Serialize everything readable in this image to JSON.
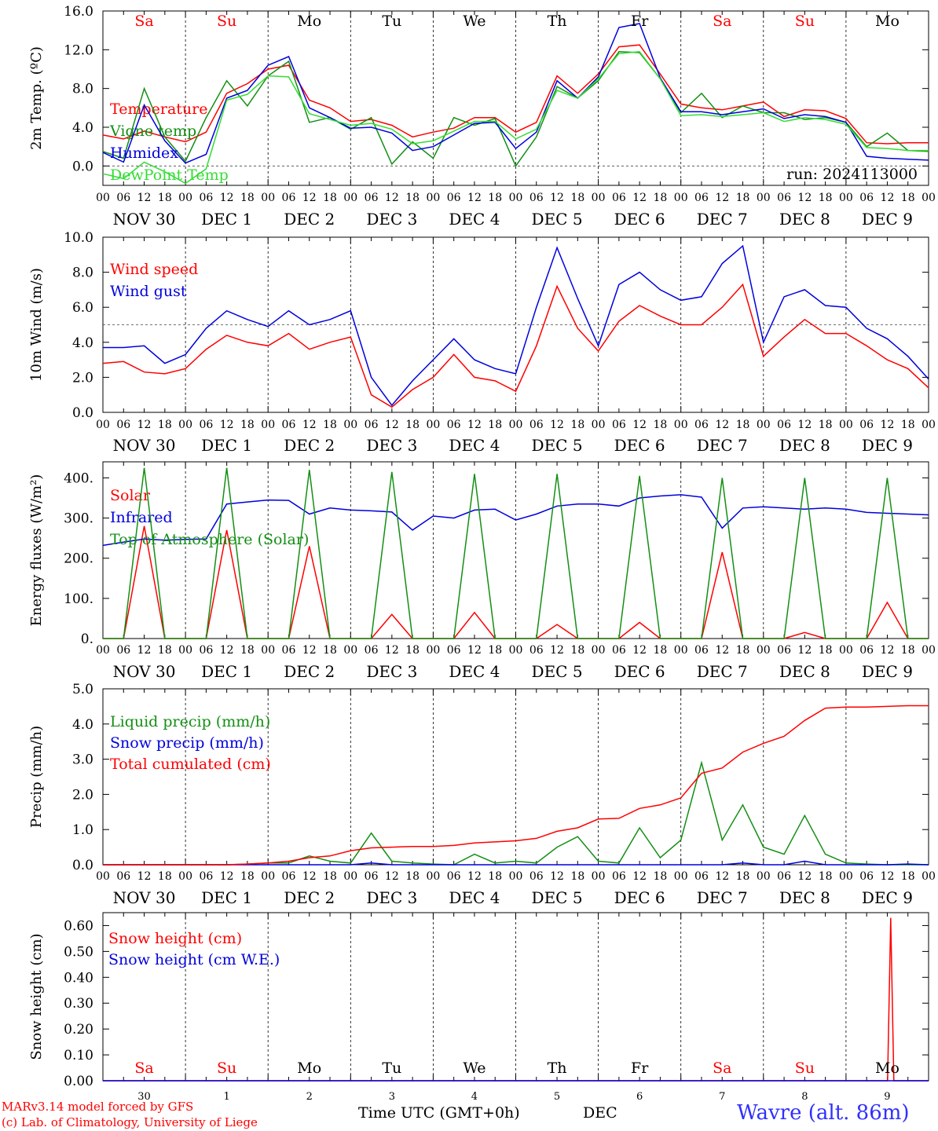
{
  "layout_days": 10,
  "day_names": [
    "Sa",
    "Su",
    "Mo",
    "Tu",
    "We",
    "Th",
    "Fr",
    "Sa",
    "Su",
    "Mo"
  ],
  "day_name_colors": [
    "#ff0000",
    "#ff0000",
    "#000000",
    "#000000",
    "#000000",
    "#000000",
    "#000000",
    "#ff0000",
    "#ff0000",
    "#000000"
  ],
  "hour_labels": [
    "00",
    "06",
    "12",
    "18"
  ],
  "date_labels": [
    "NOV 30",
    "DEC  1",
    "DEC  2",
    "DEC  3",
    "DEC  4",
    "DEC  5",
    "DEC  6",
    "DEC  7",
    "DEC  8",
    "DEC  9"
  ],
  "bottom_day_numbers": [
    "30",
    "1",
    "2",
    "3",
    "4",
    "5",
    "6",
    "7",
    "8",
    "9"
  ],
  "footer": {
    "credit_line1": "MARv3.14 model forced by GFS",
    "credit_line2": "(c) Lab. of Climatology, University of Liege",
    "time_axis": "Time UTC (GMT+0h)",
    "month": "DEC",
    "station": "Wavre (alt. 86m)"
  },
  "chart_data": [
    {
      "type": "line",
      "ylabel": "2m Temp. (ºC)",
      "ylim": [
        -2,
        16
      ],
      "yticks": [
        "0.0",
        "4.0",
        "8.0",
        "12.0",
        "16.0"
      ],
      "ytick_values": [
        0,
        4,
        8,
        12,
        16
      ],
      "reference_line": 0,
      "annotation": "run: 2024113000",
      "x": [
        0,
        6,
        12,
        18,
        24,
        30,
        36,
        42,
        48,
        54,
        60,
        66,
        72,
        78,
        84,
        90,
        96,
        102,
        108,
        114,
        120,
        126,
        132,
        138,
        144,
        150,
        156,
        162,
        168,
        174,
        180,
        186,
        192,
        198,
        204,
        210,
        216,
        222,
        228,
        234,
        240
      ],
      "series": [
        {
          "name": "Temperature",
          "color": "#ff0000",
          "values": [
            3.2,
            2.8,
            3.6,
            3.0,
            2.5,
            3.5,
            7.5,
            8.5,
            10.0,
            10.4,
            6.8,
            6.0,
            4.6,
            4.8,
            4.2,
            3.0,
            3.5,
            3.9,
            5.0,
            5.0,
            3.5,
            4.5,
            9.3,
            7.5,
            9.5,
            12.3,
            12.5,
            9.5,
            6.4,
            6.0,
            5.8,
            6.2,
            6.6,
            5.1,
            5.8,
            5.7,
            4.9,
            2.4,
            2.3,
            2.4,
            2.4
          ]
        },
        {
          "name": "Vigne temp",
          "color": "#138f13",
          "values": [
            1.5,
            0.8,
            8.0,
            3.0,
            0.5,
            5.0,
            8.8,
            6.2,
            9.3,
            10.8,
            4.5,
            5.0,
            3.8,
            5.0,
            0.2,
            2.5,
            0.8,
            5.0,
            4.2,
            4.9,
            0.0,
            3.0,
            8.2,
            7.0,
            8.8,
            11.8,
            11.7,
            9.0,
            5.5,
            7.5,
            5.0,
            6.2,
            5.5,
            5.5,
            4.8,
            5.0,
            4.5,
            2.0,
            3.4,
            1.6,
            1.5
          ]
        },
        {
          "name": "Humidex",
          "color": "#0000dd",
          "values": [
            1.4,
            0.4,
            6.3,
            2.6,
            0.3,
            1.2,
            7.0,
            7.8,
            10.4,
            11.3,
            6.0,
            5.0,
            3.9,
            4.0,
            3.4,
            1.6,
            2.0,
            3.2,
            4.4,
            4.5,
            1.8,
            3.5,
            8.8,
            7.0,
            9.2,
            14.3,
            14.7,
            9.1,
            5.6,
            5.6,
            5.3,
            5.6,
            5.9,
            4.9,
            5.3,
            5.1,
            4.5,
            1.0,
            0.8,
            0.7,
            0.6
          ]
        },
        {
          "name": "DewPoint Temp",
          "color": "#33dd33",
          "values": [
            -0.8,
            -1.3,
            0.4,
            -0.6,
            -1.8,
            -0.3,
            6.8,
            7.4,
            9.3,
            9.2,
            5.4,
            4.8,
            4.2,
            4.4,
            3.8,
            2.3,
            2.6,
            3.6,
            4.6,
            4.6,
            2.8,
            3.8,
            7.8,
            7.0,
            9.0,
            11.6,
            11.8,
            9.0,
            5.2,
            5.3,
            5.1,
            5.3,
            5.5,
            4.6,
            5.0,
            4.8,
            4.3,
            1.9,
            1.8,
            1.6,
            1.6
          ]
        }
      ]
    },
    {
      "type": "line",
      "ylabel": "10m Wind (m/s)",
      "ylim": [
        0,
        10
      ],
      "yticks": [
        "0.0",
        "2.0",
        "4.0",
        "6.0",
        "8.0",
        "10.0"
      ],
      "ytick_values": [
        0,
        2,
        4,
        6,
        8,
        10
      ],
      "reference_line": 5,
      "x": [
        0,
        6,
        12,
        18,
        24,
        30,
        36,
        42,
        48,
        54,
        60,
        66,
        72,
        78,
        84,
        90,
        96,
        102,
        108,
        114,
        120,
        126,
        132,
        138,
        144,
        150,
        156,
        162,
        168,
        174,
        180,
        186,
        192,
        198,
        204,
        210,
        216,
        222,
        228,
        234,
        240
      ],
      "series": [
        {
          "name": "Wind speed",
          "color": "#ff0000",
          "values": [
            2.8,
            2.9,
            2.3,
            2.2,
            2.5,
            3.6,
            4.4,
            4.0,
            3.8,
            4.5,
            3.6,
            4.0,
            4.3,
            1.0,
            0.3,
            1.3,
            2.0,
            3.3,
            2.0,
            1.8,
            1.2,
            3.8,
            7.2,
            4.8,
            3.5,
            5.2,
            6.1,
            5.5,
            5.0,
            5.0,
            6.0,
            7.3,
            3.2,
            4.3,
            5.3,
            4.5,
            4.5,
            3.8,
            3.0,
            2.5,
            1.4
          ]
        },
        {
          "name": "Wind gust",
          "color": "#0000dd",
          "values": [
            3.7,
            3.7,
            3.8,
            2.8,
            3.3,
            4.8,
            5.8,
            5.3,
            4.9,
            5.8,
            5.0,
            5.3,
            5.8,
            2.0,
            0.4,
            1.8,
            3.0,
            4.2,
            3.0,
            2.5,
            2.2,
            6.0,
            9.4,
            6.5,
            3.8,
            7.3,
            8.0,
            7.0,
            6.4,
            6.6,
            8.5,
            9.5,
            4.0,
            6.6,
            7.0,
            6.1,
            6.0,
            4.8,
            4.2,
            3.2,
            1.9
          ]
        }
      ]
    },
    {
      "type": "line",
      "ylabel": "Energy fluxes (W/m²)",
      "ylim": [
        0,
        440
      ],
      "yticks": [
        "0.",
        "100.",
        "200.",
        "300.",
        "400."
      ],
      "ytick_values": [
        0,
        100,
        200,
        300,
        400
      ],
      "x": [
        0,
        6,
        12,
        18,
        24,
        30,
        36,
        42,
        48,
        54,
        60,
        66,
        72,
        78,
        84,
        90,
        96,
        102,
        108,
        114,
        120,
        126,
        132,
        138,
        144,
        150,
        156,
        162,
        168,
        174,
        180,
        186,
        192,
        198,
        204,
        210,
        216,
        222,
        228,
        234,
        240
      ],
      "series": [
        {
          "name": "Solar",
          "color": "#ff0000",
          "values": [
            0,
            0,
            280,
            0,
            0,
            0,
            270,
            0,
            0,
            0,
            230,
            0,
            0,
            0,
            60,
            0,
            0,
            0,
            65,
            0,
            0,
            0,
            35,
            0,
            0,
            0,
            40,
            0,
            0,
            0,
            215,
            0,
            0,
            0,
            15,
            0,
            0,
            0,
            90,
            0,
            0
          ]
        },
        {
          "name": "Infrared",
          "color": "#0000dd",
          "values": [
            232,
            240,
            248,
            245,
            247,
            248,
            335,
            340,
            345,
            344,
            310,
            325,
            320,
            318,
            315,
            270,
            305,
            300,
            320,
            322,
            295,
            310,
            330,
            335,
            335,
            330,
            350,
            355,
            358,
            352,
            275,
            325,
            328,
            325,
            322,
            325,
            322,
            314,
            312,
            310,
            308
          ]
        },
        {
          "name": "Top of Atmosphere (Solar)",
          "color": "#138f13",
          "values": [
            0,
            0,
            425,
            0,
            0,
            0,
            425,
            0,
            0,
            0,
            420,
            0,
            0,
            0,
            415,
            0,
            0,
            0,
            410,
            0,
            0,
            0,
            410,
            0,
            0,
            0,
            405,
            0,
            0,
            0,
            400,
            0,
            0,
            0,
            400,
            0,
            0,
            0,
            400,
            0,
            0
          ]
        }
      ]
    },
    {
      "type": "line",
      "ylabel": "Precip (mm/h)",
      "ylim": [
        0,
        5
      ],
      "yticks": [
        "0.0",
        "1.0",
        "2.0",
        "3.0",
        "4.0",
        "5.0"
      ],
      "ytick_values": [
        0,
        1,
        2,
        3,
        4,
        5
      ],
      "x": [
        0,
        6,
        12,
        18,
        24,
        30,
        36,
        42,
        48,
        54,
        60,
        66,
        72,
        78,
        84,
        90,
        96,
        102,
        108,
        114,
        120,
        126,
        132,
        138,
        144,
        150,
        156,
        162,
        168,
        174,
        180,
        186,
        192,
        198,
        204,
        210,
        216,
        222,
        228,
        234,
        240
      ],
      "series": [
        {
          "name": "Liquid precip (mm/h)",
          "color": "#138f13",
          "values": [
            0,
            0,
            0,
            0,
            0,
            0,
            0,
            0.02,
            0.05,
            0.05,
            0.25,
            0.1,
            0.05,
            0.9,
            0.1,
            0.05,
            0.02,
            0,
            0.3,
            0.05,
            0.1,
            0.05,
            0.5,
            0.8,
            0.1,
            0.05,
            1.05,
            0.2,
            0.7,
            2.9,
            0.7,
            1.7,
            0.5,
            0.3,
            1.4,
            0.3,
            0.05,
            0.02,
            0,
            0,
            0
          ]
        },
        {
          "name": "Snow precip (mm/h)",
          "color": "#0000dd",
          "values": [
            0,
            0,
            0,
            0,
            0,
            0,
            0,
            0,
            0,
            0,
            0,
            0,
            0,
            0.05,
            0,
            0,
            0,
            0,
            0,
            0,
            0,
            0,
            0,
            0,
            0,
            0,
            0,
            0,
            0,
            0,
            0,
            0.05,
            0,
            0,
            0.1,
            0,
            0,
            0,
            0,
            0.02,
            0
          ]
        },
        {
          "name": "Total cumulated (cm)",
          "color": "#ff0000",
          "values": [
            0,
            0,
            0,
            0,
            0,
            0,
            0,
            0.02,
            0.05,
            0.1,
            0.2,
            0.25,
            0.4,
            0.48,
            0.5,
            0.52,
            0.52,
            0.55,
            0.62,
            0.65,
            0.68,
            0.75,
            0.95,
            1.05,
            1.3,
            1.32,
            1.6,
            1.7,
            1.9,
            2.6,
            2.75,
            3.2,
            3.45,
            3.65,
            4.1,
            4.45,
            4.48,
            4.48,
            4.5,
            4.52,
            4.52
          ]
        }
      ]
    },
    {
      "type": "line",
      "ylabel": "Snow height (cm)",
      "ylim": [
        0,
        0.65
      ],
      "yticks": [
        "0.00",
        "0.10",
        "0.20",
        "0.30",
        "0.40",
        "0.50",
        "0.60"
      ],
      "ytick_values": [
        0,
        0.1,
        0.2,
        0.3,
        0.4,
        0.5,
        0.6
      ],
      "x": [
        0,
        6,
        12,
        18,
        24,
        30,
        36,
        42,
        48,
        54,
        60,
        66,
        72,
        78,
        84,
        90,
        96,
        102,
        108,
        114,
        120,
        126,
        132,
        138,
        144,
        150,
        156,
        162,
        168,
        174,
        180,
        186,
        192,
        198,
        204,
        210,
        216,
        222,
        228,
        234,
        240
      ],
      "series": [
        {
          "name": "Snow height (cm)",
          "color": "#ff0000",
          "values": [
            0,
            0,
            0,
            0,
            0,
            0,
            0,
            0,
            0,
            0,
            0,
            0,
            0,
            0,
            0,
            0,
            0,
            0,
            0,
            0,
            0,
            0,
            0,
            0,
            0,
            0,
            0,
            0,
            0,
            0,
            0,
            0,
            0,
            0,
            0,
            0,
            0,
            0,
            0,
            0,
            0
          ],
          "spike": {
            "x": 229,
            "value": 0.63
          }
        },
        {
          "name": "Snow height (cm W.E.)",
          "color": "#0000dd",
          "values": [
            0,
            0,
            0,
            0,
            0,
            0,
            0,
            0,
            0,
            0,
            0,
            0,
            0,
            0,
            0,
            0,
            0,
            0,
            0,
            0,
            0,
            0,
            0,
            0,
            0,
            0,
            0,
            0,
            0,
            0,
            0,
            0,
            0,
            0,
            0,
            0,
            0,
            0,
            0,
            0,
            0
          ]
        }
      ]
    }
  ]
}
